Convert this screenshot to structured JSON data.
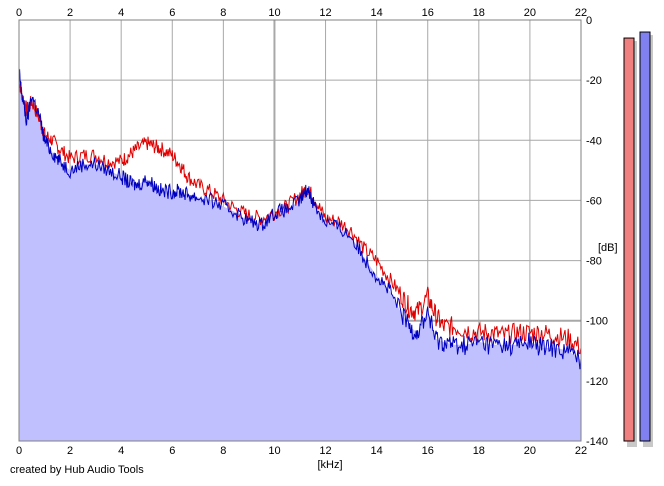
{
  "chart_data": {
    "type": "area",
    "xlabel": "[kHz]",
    "ylabel": "[dB]",
    "xlim": [
      0,
      22
    ],
    "ylim": [
      -140,
      0
    ],
    "x_ticks": [
      0,
      2,
      4,
      6,
      8,
      10,
      12,
      14,
      16,
      18,
      20,
      22
    ],
    "y_ticks": [
      -20,
      -40,
      -60,
      -80,
      -100,
      -120,
      -140
    ],
    "y_tick_top": "0",
    "grid": true,
    "series": [
      {
        "color": "#e00000",
        "x": [
          0,
          0.1,
          0.3,
          0.5,
          0.8,
          1.0,
          1.3,
          1.6,
          2.0,
          2.5,
          3.0,
          3.5,
          4.0,
          4.3,
          4.6,
          5.0,
          5.3,
          5.6,
          6.0,
          6.3,
          6.6,
          7.0,
          7.5,
          8.0,
          8.5,
          9.0,
          9.5,
          10.0,
          10.5,
          11.0,
          11.3,
          11.6,
          12.0,
          12.5,
          13.0,
          13.5,
          14.0,
          14.5,
          15.0,
          15.3,
          15.6,
          16.0,
          16.3,
          16.6,
          17.0,
          17.5,
          18.0,
          18.5,
          19.0,
          19.5,
          20.0,
          20.5,
          21.0,
          21.5,
          22.0
        ],
        "values": [
          -20,
          -24,
          -30,
          -27,
          -33,
          -38,
          -40,
          -43,
          -46,
          -45,
          -45,
          -47,
          -47,
          -45,
          -43,
          -41,
          -42,
          -43,
          -45,
          -48,
          -52,
          -55,
          -57,
          -60,
          -63,
          -65,
          -66,
          -64,
          -62,
          -58,
          -56,
          -60,
          -66,
          -67,
          -70,
          -76,
          -80,
          -86,
          -92,
          -96,
          -97,
          -92,
          -98,
          -102,
          -102,
          -103,
          -104,
          -104,
          -105,
          -104,
          -104,
          -104,
          -105,
          -106,
          -109
        ]
      },
      {
        "color": "#0000c0",
        "x": [
          0,
          0.1,
          0.3,
          0.5,
          0.8,
          1.0,
          1.3,
          1.6,
          2.0,
          2.5,
          3.0,
          3.5,
          4.0,
          4.3,
          4.6,
          5.0,
          5.3,
          5.6,
          6.0,
          6.3,
          6.6,
          7.0,
          7.5,
          8.0,
          8.5,
          9.0,
          9.5,
          10.0,
          10.5,
          11.0,
          11.3,
          11.6,
          12.0,
          12.5,
          13.0,
          13.5,
          14.0,
          14.5,
          15.0,
          15.3,
          15.6,
          16.0,
          16.3,
          16.6,
          17.0,
          17.5,
          18.0,
          18.5,
          19.0,
          19.5,
          20.0,
          20.5,
          21.0,
          21.5,
          22.0
        ],
        "values": [
          -17,
          -24,
          -34,
          -25,
          -32,
          -40,
          -44,
          -47,
          -50,
          -48,
          -48,
          -50,
          -52,
          -54,
          -55,
          -53,
          -55,
          -57,
          -57,
          -57,
          -58,
          -59,
          -60,
          -62,
          -64,
          -67,
          -68,
          -64,
          -63,
          -60,
          -56,
          -62,
          -67,
          -69,
          -72,
          -79,
          -85,
          -90,
          -98,
          -102,
          -104,
          -97,
          -106,
          -107,
          -108,
          -108,
          -107,
          -108,
          -108,
          -108,
          -107,
          -109,
          -109,
          -110,
          -113
        ]
      }
    ],
    "level_meters": [
      {
        "color": "#f08080",
        "top_db": -6,
        "bottom_db": -140
      },
      {
        "color": "#8080f0",
        "top_db": -4,
        "bottom_db": -140
      }
    ]
  },
  "credit": "created by Hub Audio Tools"
}
